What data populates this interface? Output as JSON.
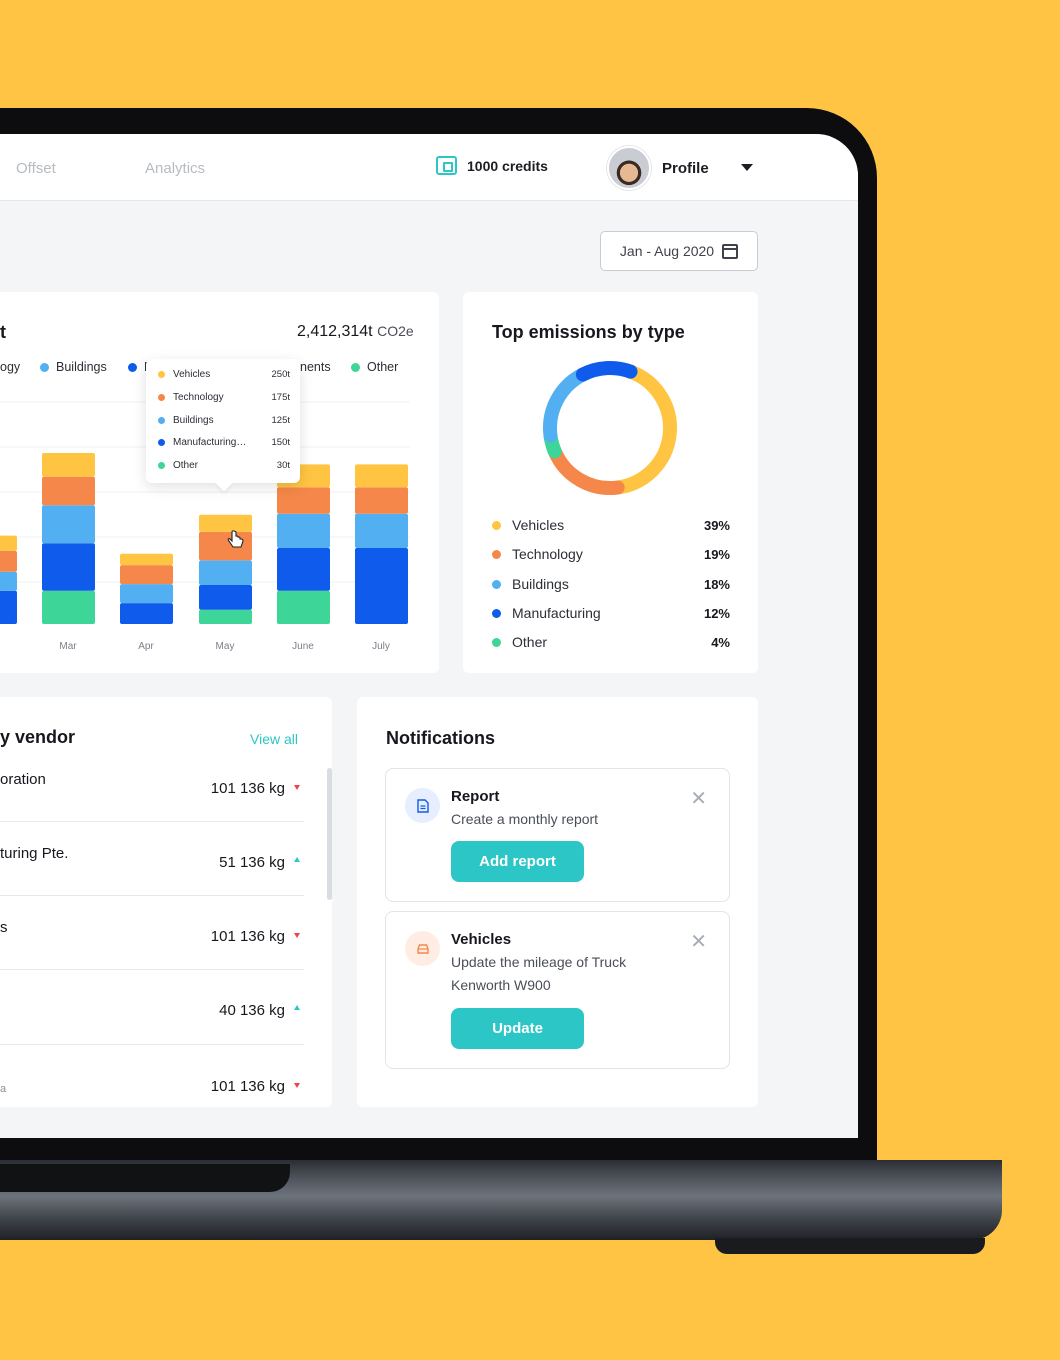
{
  "nav": {
    "links": [
      "Offset",
      "Analytics"
    ],
    "credits_label": "1000 credits",
    "profile_label": "Profile"
  },
  "date_range": "Jan - Aug 2020",
  "emissions_chart": {
    "title_fragment": "t",
    "total_value": "2,412,314t",
    "total_unit": "CO2e",
    "legend": [
      {
        "label": "ogy",
        "color": "#F6874A"
      },
      {
        "label": "Buildings",
        "color": "#52B0F2"
      },
      {
        "label": "M",
        "color": "#0F5BEB"
      },
      {
        "label": "nents",
        "color": "#0F5BEB"
      },
      {
        "label": "Other",
        "color": "#3ED598"
      }
    ],
    "tooltip": [
      {
        "label": "Vehicles",
        "value": "250t",
        "color": "#FFC542"
      },
      {
        "label": "Technology",
        "value": "175t",
        "color": "#F6874A"
      },
      {
        "label": "Buildings",
        "value": "125t",
        "color": "#52B0F2"
      },
      {
        "label": "Manufacturing…",
        "value": "150t",
        "color": "#0F5BEB"
      },
      {
        "label": "Other",
        "value": "30t",
        "color": "#3ED598"
      }
    ]
  },
  "chart_data": {
    "type": "bar",
    "stacked": true,
    "categories": [
      "Mar",
      "Apr",
      "May",
      "June",
      "July"
    ],
    "series": [
      {
        "name": "Other",
        "color": "#3ED598",
        "values": [
          35,
          0,
          15,
          35,
          0
        ]
      },
      {
        "name": "Manufacturing",
        "color": "#0F5BEB",
        "values": [
          50,
          22,
          26,
          45,
          80
        ]
      },
      {
        "name": "Buildings",
        "color": "#52B0F2",
        "values": [
          40,
          20,
          26,
          36,
          36
        ]
      },
      {
        "name": "Technology",
        "color": "#F6874A",
        "values": [
          30,
          20,
          30,
          28,
          28
        ]
      },
      {
        "name": "Vehicles",
        "color": "#FFC542",
        "values": [
          25,
          12,
          18,
          24,
          24
        ]
      }
    ],
    "grid": true
  },
  "top_emissions": {
    "title": "Top emissions by type",
    "items": [
      {
        "label": "Vehicles",
        "pct": "39%",
        "value": 39,
        "color": "#FFC542"
      },
      {
        "label": "Technology",
        "pct": "19%",
        "value": 19,
        "color": "#F6874A"
      },
      {
        "label": "Buildings",
        "pct": "18%",
        "value": 18,
        "color": "#52B0F2"
      },
      {
        "label": "Manufacturing",
        "pct": "12%",
        "value": 12,
        "color": "#0F5BEB"
      },
      {
        "label": "Other",
        "pct": "4%",
        "value": 4,
        "color": "#3ED598"
      }
    ]
  },
  "vendor": {
    "title": "y vendor",
    "view_all": "View all",
    "rows": [
      {
        "name": "oration",
        "value": "101 136 kg",
        "trend": "down"
      },
      {
        "name": "turing Pte.",
        "value": "51 136 kg",
        "trend": "up"
      },
      {
        "name": "s",
        "value": "101 136 kg",
        "trend": "down"
      },
      {
        "name": "",
        "value": "40 136 kg",
        "trend": "up"
      },
      {
        "name": "a",
        "value": "101 136 kg",
        "trend": "down"
      }
    ]
  },
  "notifications": {
    "title": "Notifications",
    "items": [
      {
        "title": "Report",
        "text": "Create a monthly report",
        "button": "Add report",
        "icon": "document-icon"
      },
      {
        "title": "Vehicles",
        "text": "Update the mileage of Truck Kenworth W900",
        "button": "Update",
        "icon": "car-icon"
      }
    ]
  }
}
